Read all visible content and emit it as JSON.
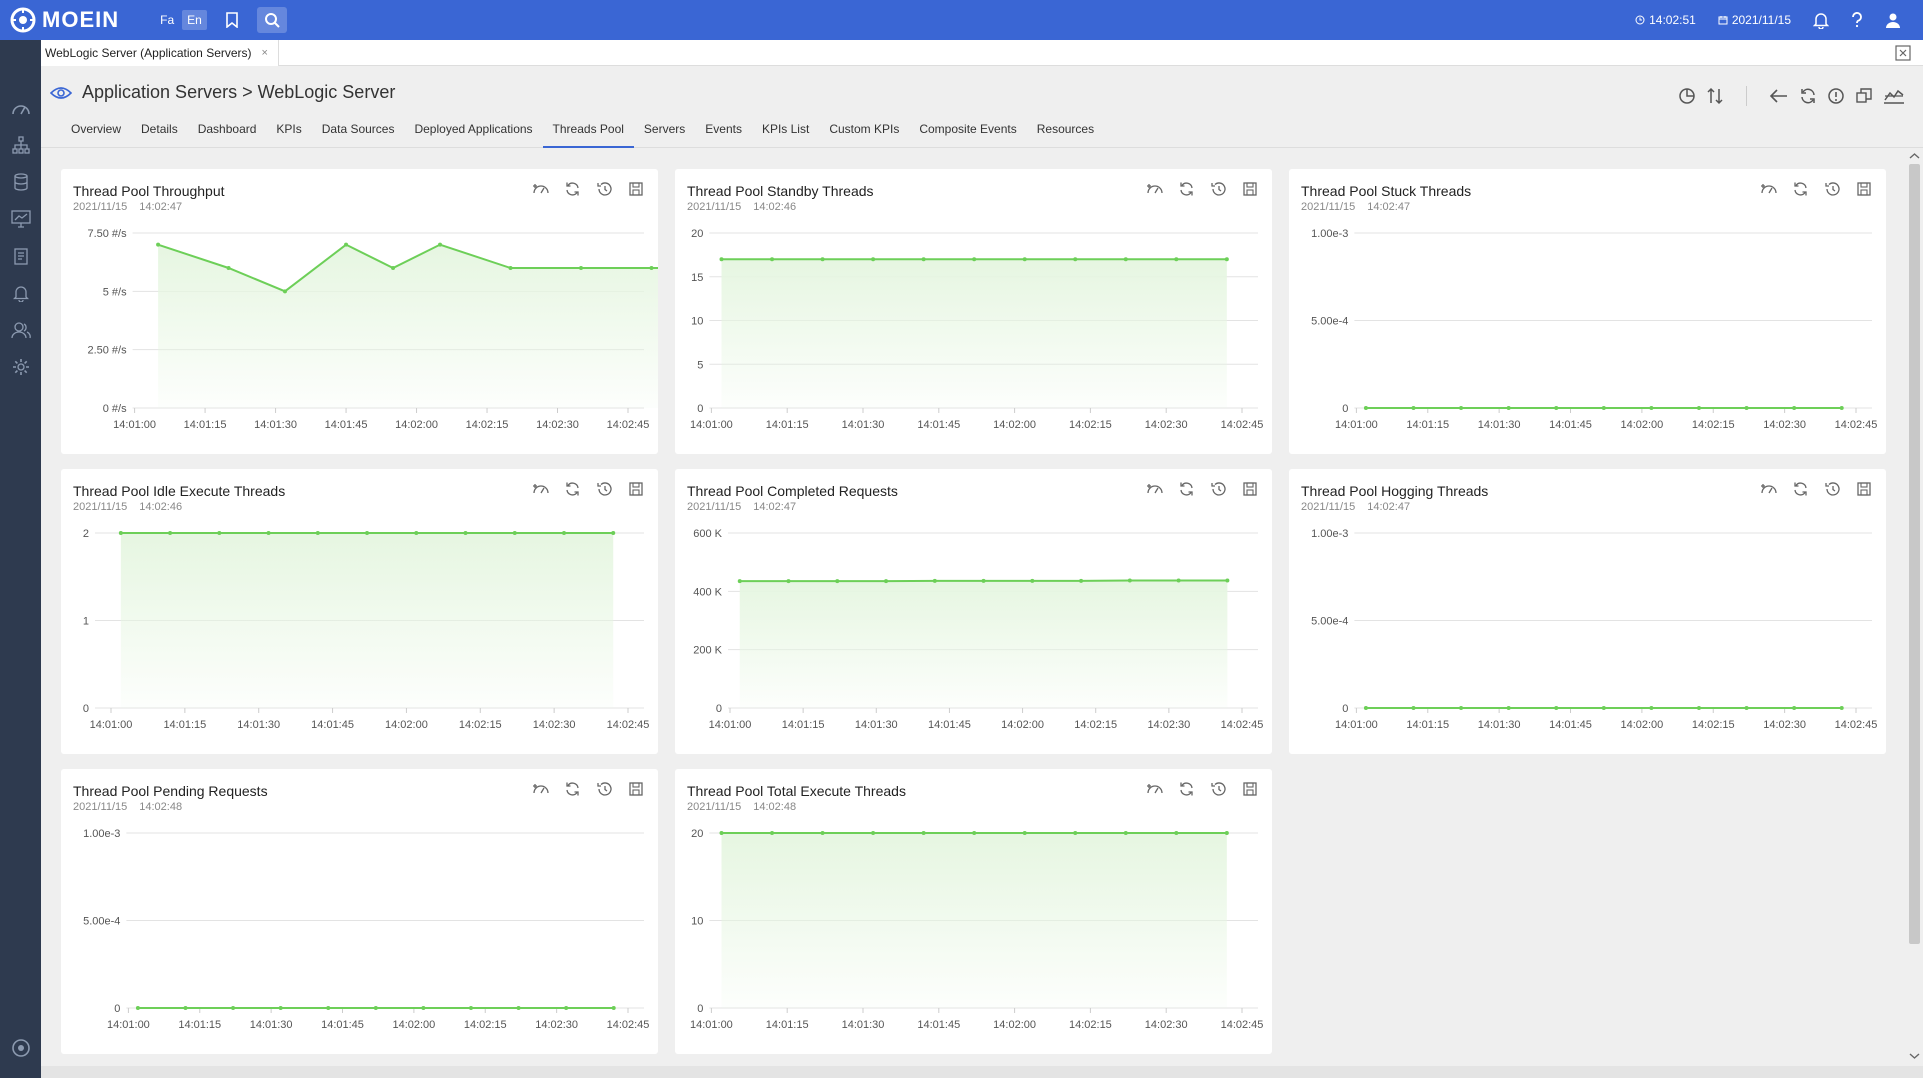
{
  "topbar": {
    "brand": "MOEIN",
    "lang_fa": "Fa",
    "lang_en": "En",
    "time": "14:02:51",
    "date": "2021/11/15"
  },
  "doc_tab": {
    "label": "WebLogic Server (Application Servers)",
    "close": "×"
  },
  "header": {
    "title": "Application Servers > WebLogic Server",
    "tabs": [
      "Overview",
      "Details",
      "Dashboard",
      "KPIs",
      "Data Sources",
      "Deployed Applications",
      "Threads Pool",
      "Servers",
      "Events",
      "KPIs List",
      "Custom KPIs",
      "Composite Events",
      "Resources"
    ],
    "active_tab": "Threads Pool"
  },
  "colors": {
    "accent": "#3a66d4",
    "sidebar": "#2e3a4f",
    "series_line": "#6dcf58",
    "series_fill": "#e6f6e1"
  },
  "chart_data": [
    {
      "type": "area",
      "title": "Thread Pool Throughput",
      "date": "2021/11/15",
      "time": "14:02:47",
      "x_ticks": [
        "14:01:00",
        "14:01:15",
        "14:01:30",
        "14:01:45",
        "14:02:00",
        "14:02:15",
        "14:02:30",
        "14:02:45"
      ],
      "y_ticks": [
        "7.50 #/s",
        "5 #/s",
        "2.50 #/s",
        "0 #/s"
      ],
      "ylim": [
        0,
        7.5
      ],
      "x_seconds": [
        5,
        20,
        32,
        45,
        55,
        65,
        80,
        95,
        110,
        125
      ],
      "values": [
        7.0,
        6.0,
        5.0,
        7.0,
        6.0,
        7.0,
        6.0,
        6.0,
        6.0,
        6.0
      ]
    },
    {
      "type": "area",
      "title": "Thread Pool Standby Threads",
      "date": "2021/11/15",
      "time": "14:02:46",
      "x_ticks": [
        "14:01:00",
        "14:01:15",
        "14:01:30",
        "14:01:45",
        "14:02:00",
        "14:02:15",
        "14:02:30",
        "14:02:45"
      ],
      "y_ticks": [
        "20",
        "15",
        "10",
        "5",
        "0"
      ],
      "ylim": [
        0,
        20
      ],
      "x_seconds": [
        2,
        12,
        22,
        32,
        42,
        52,
        62,
        72,
        82,
        92,
        102
      ],
      "values": [
        17,
        17,
        17,
        17,
        17,
        17,
        17,
        17,
        17,
        17,
        17
      ]
    },
    {
      "type": "area",
      "title": "Thread Pool Stuck Threads",
      "date": "2021/11/15",
      "time": "14:02:47",
      "x_ticks": [
        "14:01:00",
        "14:01:15",
        "14:01:30",
        "14:01:45",
        "14:02:00",
        "14:02:15",
        "14:02:30",
        "14:02:45"
      ],
      "y_ticks": [
        "1.00e-3",
        "5.00e-4",
        "0"
      ],
      "ylim": [
        0,
        0.001
      ],
      "x_seconds": [
        2,
        12,
        22,
        32,
        42,
        52,
        62,
        72,
        82,
        92,
        102
      ],
      "values": [
        0,
        0,
        0,
        0,
        0,
        0,
        0,
        0,
        0,
        0,
        0
      ]
    },
    {
      "type": "area",
      "title": "Thread Pool Idle Execute Threads",
      "date": "2021/11/15",
      "time": "14:02:46",
      "x_ticks": [
        "14:01:00",
        "14:01:15",
        "14:01:30",
        "14:01:45",
        "14:02:00",
        "14:02:15",
        "14:02:30",
        "14:02:45"
      ],
      "y_ticks": [
        "2",
        "1",
        "0"
      ],
      "ylim": [
        0,
        2
      ],
      "x_seconds": [
        2,
        12,
        22,
        32,
        42,
        52,
        62,
        72,
        82,
        92,
        102
      ],
      "values": [
        2,
        2,
        2,
        2,
        2,
        2,
        2,
        2,
        2,
        2,
        2
      ]
    },
    {
      "type": "area",
      "title": "Thread Pool Completed Requests",
      "date": "2021/11/15",
      "time": "14:02:47",
      "x_ticks": [
        "14:01:00",
        "14:01:15",
        "14:01:30",
        "14:01:45",
        "14:02:00",
        "14:02:15",
        "14:02:30",
        "14:02:45"
      ],
      "y_ticks": [
        "600 K",
        "400 K",
        "200 K",
        "0"
      ],
      "ylim": [
        0,
        600000
      ],
      "x_seconds": [
        2,
        12,
        22,
        32,
        42,
        52,
        62,
        72,
        82,
        92,
        102
      ],
      "values": [
        435000,
        435000,
        435000,
        435000,
        436000,
        436000,
        436000,
        436000,
        437000,
        437000,
        437000
      ]
    },
    {
      "type": "area",
      "title": "Thread Pool Hogging Threads",
      "date": "2021/11/15",
      "time": "14:02:47",
      "x_ticks": [
        "14:01:00",
        "14:01:15",
        "14:01:30",
        "14:01:45",
        "14:02:00",
        "14:02:15",
        "14:02:30",
        "14:02:45"
      ],
      "y_ticks": [
        "1.00e-3",
        "5.00e-4",
        "0"
      ],
      "ylim": [
        0,
        0.001
      ],
      "x_seconds": [
        2,
        12,
        22,
        32,
        42,
        52,
        62,
        72,
        82,
        92,
        102
      ],
      "values": [
        0,
        0,
        0,
        0,
        0,
        0,
        0,
        0,
        0,
        0,
        0
      ]
    },
    {
      "type": "area",
      "title": "Thread Pool Pending Requests",
      "date": "2021/11/15",
      "time": "14:02:48",
      "x_ticks": [
        "14:01:00",
        "14:01:15",
        "14:01:30",
        "14:01:45",
        "14:02:00",
        "14:02:15",
        "14:02:30",
        "14:02:45"
      ],
      "y_ticks": [
        "1.00e-3",
        "5.00e-4",
        "0"
      ],
      "ylim": [
        0,
        0.001
      ],
      "x_seconds": [
        2,
        12,
        22,
        32,
        42,
        52,
        62,
        72,
        82,
        92,
        102
      ],
      "values": [
        0,
        0,
        0,
        0,
        0,
        0,
        0,
        0,
        0,
        0,
        0
      ]
    },
    {
      "type": "area",
      "title": "Thread Pool Total Execute Threads",
      "date": "2021/11/15",
      "time": "14:02:48",
      "x_ticks": [
        "14:01:00",
        "14:01:15",
        "14:01:30",
        "14:01:45",
        "14:02:00",
        "14:02:15",
        "14:02:30",
        "14:02:45"
      ],
      "y_ticks": [
        "20",
        "10",
        "0"
      ],
      "ylim": [
        0,
        20
      ],
      "x_seconds": [
        2,
        12,
        22,
        32,
        42,
        52,
        62,
        72,
        82,
        92,
        102
      ],
      "values": [
        20,
        20,
        20,
        20,
        20,
        20,
        20,
        20,
        20,
        20,
        20
      ]
    }
  ]
}
